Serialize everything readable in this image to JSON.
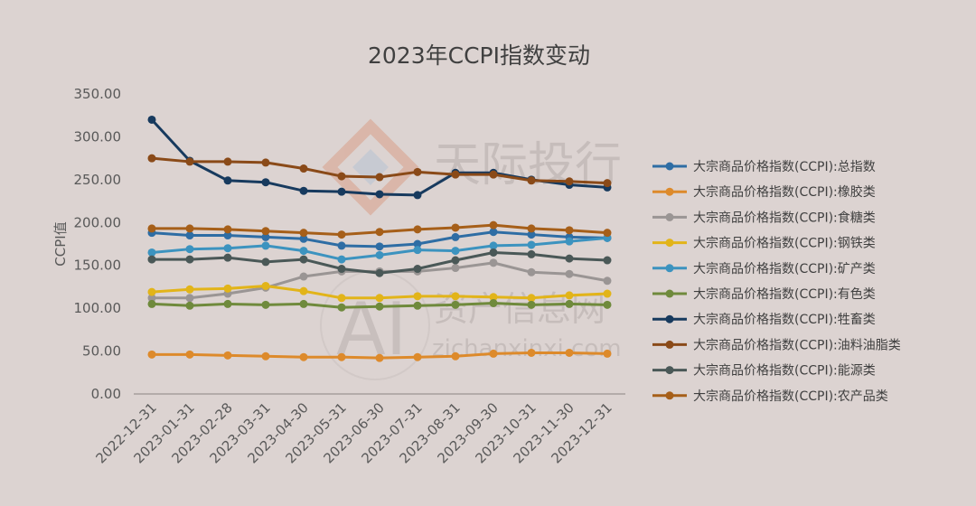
{
  "chart_data": {
    "type": "line",
    "title": "2023年CCPI指数变动",
    "xlabel": "",
    "ylabel": "CCPI值",
    "ylim": [
      0,
      350
    ],
    "y_ticks": [
      "0.00",
      "50.00",
      "100.00",
      "150.00",
      "200.00",
      "250.00",
      "300.00",
      "350.00"
    ],
    "categories": [
      "2022-12-31",
      "2023-01-31",
      "2023-02-28",
      "2023-03-31",
      "2023-04-30",
      "2023-05-31",
      "2023-06-30",
      "2023-07-31",
      "2023-08-31",
      "2023-09-30",
      "2023-10-31",
      "2023-11-30",
      "2023-12-31"
    ],
    "grid": false,
    "legend_position": "right",
    "series": [
      {
        "name": "大宗商品价格指数(CCPI):总指数",
        "color": "#2e6da4",
        "values": [
          188,
          185,
          185,
          183,
          181,
          173,
          172,
          175,
          183,
          189,
          186,
          183,
          182
        ]
      },
      {
        "name": "大宗商品价格指数(CCPI):橡胶类",
        "color": "#dd8a2b",
        "values": [
          46,
          46,
          45,
          44,
          43,
          43,
          42,
          43,
          44,
          47,
          48,
          48,
          47
        ]
      },
      {
        "name": "大宗商品价格指数(CCPI):食糖类",
        "color": "#9a9594",
        "values": [
          112,
          112,
          117,
          124,
          137,
          143,
          143,
          143,
          147,
          153,
          142,
          140,
          132
        ]
      },
      {
        "name": "大宗商品价格指数(CCPI):钢铁类",
        "color": "#e2b419",
        "values": [
          119,
          122,
          123,
          126,
          120,
          112,
          112,
          114,
          114,
          113,
          112,
          115,
          117
        ]
      },
      {
        "name": "大宗商品价格指数(CCPI):矿产类",
        "color": "#3c93bf",
        "values": [
          165,
          169,
          170,
          173,
          167,
          157,
          162,
          168,
          167,
          173,
          174,
          178,
          182
        ]
      },
      {
        "name": "大宗商品价格指数(CCPI):有色类",
        "color": "#6f8a3c",
        "values": [
          105,
          103,
          105,
          104,
          105,
          101,
          102,
          103,
          104,
          106,
          104,
          105,
          104
        ]
      },
      {
        "name": "大宗商品价格指数(CCPI):牲畜类",
        "color": "#173a5e",
        "values": [
          320,
          272,
          249,
          247,
          237,
          236,
          233,
          232,
          258,
          258,
          250,
          244,
          241
        ]
      },
      {
        "name": "大宗商品价格指数(CCPI):油料油脂类",
        "color": "#8a4a18",
        "values": [
          275,
          271,
          271,
          270,
          263,
          254,
          253,
          259,
          256,
          256,
          249,
          248,
          246
        ]
      },
      {
        "name": "大宗商品价格指数(CCPI):能源类",
        "color": "#4a5857",
        "values": [
          157,
          157,
          159,
          154,
          157,
          146,
          141,
          146,
          156,
          165,
          163,
          158,
          156
        ]
      },
      {
        "name": "大宗商品价格指数(CCPI):农产品类",
        "color": "#a65f19",
        "values": [
          193,
          193,
          192,
          190,
          188,
          186,
          189,
          192,
          194,
          197,
          193,
          191,
          188
        ]
      }
    ]
  },
  "watermark": {
    "top_text": "天际投行",
    "bottom_logo": "AI",
    "bottom_text": "资产信息网",
    "bottom_url": "zichanxinxi.com"
  }
}
